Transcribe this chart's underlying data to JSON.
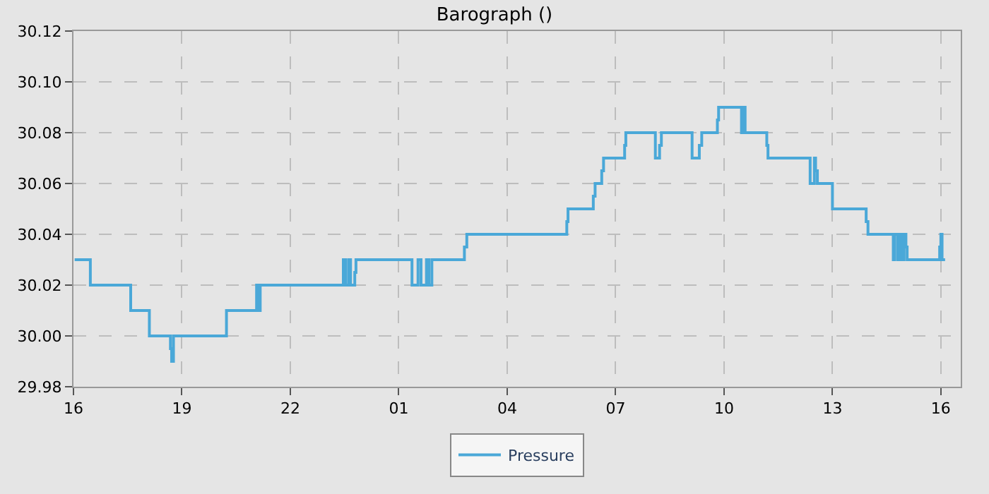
{
  "chart_data": {
    "type": "step",
    "title": "Barograph ()",
    "x": [
      "--01-01T16:02",
      "--01-01T16:28",
      "--01-01T17:35",
      "--01-01T18:06",
      "--01-01T18:41",
      "--01-01T18:43",
      "--01-01T18:46",
      "--01-01T20:14",
      "--01-01T21:04",
      "--01-01T21:06",
      "--01-01T21:10",
      "--01-01T23:28",
      "--01-01T23:32",
      "--01-01T23:37",
      "--01-01T23:40",
      "--01-01T23:47",
      "--01-01T23:49",
      "--01-02T01:22",
      "--01-02T01:32",
      "--01-02T01:37",
      "--01-02T01:46",
      "--01-02T01:50",
      "--01-02T01:55",
      "--01-02T02:49",
      "--01-02T02:53",
      "--01-02T05:39",
      "--01-02T05:41",
      "--01-02T06:23",
      "--01-02T06:26",
      "--01-02T06:37",
      "--01-02T06:40",
      "--01-02T07:15",
      "--01-02T07:17",
      "--01-02T08:06",
      "--01-02T08:13",
      "--01-02T08:16",
      "--01-02T09:07",
      "--01-02T09:19",
      "--01-02T09:23",
      "--01-02T09:49",
      "--01-02T09:51",
      "--01-02T10:29",
      "--01-02T10:31",
      "--01-02T10:35",
      "--01-02T11:11",
      "--01-02T11:13",
      "--01-02T12:23",
      "--01-02T12:30",
      "--01-02T12:32",
      "--01-02T12:35",
      "--01-02T13:00",
      "--01-02T13:56",
      "--01-02T13:59",
      "--01-02T14:41",
      "--01-02T14:43",
      "--01-02T14:48",
      "--01-02T14:52",
      "--01-02T14:55",
      "--01-02T14:59",
      "--01-02T15:02",
      "--01-02T15:04",
      "--01-02T15:58",
      "--01-02T16:00",
      "--01-02T16:02",
      "--01-02T16:07"
    ],
    "series": [
      {
        "name": "Pressure",
        "color": "#4aa8d8",
        "values": [
          30.03,
          30.02,
          30.01,
          30.0,
          29.995,
          29.99,
          30.0,
          30.01,
          30.02,
          30.01,
          30.02,
          30.03,
          30.02,
          30.03,
          30.02,
          30.025,
          30.03,
          30.02,
          30.03,
          30.02,
          30.03,
          30.02,
          30.03,
          30.035,
          30.04,
          30.045,
          30.05,
          30.055,
          30.06,
          30.065,
          30.07,
          30.075,
          30.08,
          30.07,
          30.075,
          30.08,
          30.07,
          30.075,
          30.08,
          30.085,
          30.09,
          30.08,
          30.09,
          30.08,
          30.075,
          30.07,
          30.06,
          30.07,
          30.065,
          30.06,
          30.05,
          30.045,
          30.04,
          30.03,
          30.04,
          30.03,
          30.04,
          30.03,
          30.04,
          30.035,
          30.03,
          30.035,
          30.04,
          30.03,
          30.03
        ]
      }
    ],
    "xlim": [
      "--01-01T16:00",
      "--01-02T16:33"
    ],
    "xticks": [
      {
        "value": "--01-01T16:00",
        "label": "16"
      },
      {
        "value": "--01-01T19:00",
        "label": "19"
      },
      {
        "value": "--01-01T22:00",
        "label": "22"
      },
      {
        "value": "--01-02T01:00",
        "label": "01"
      },
      {
        "value": "--01-02T04:00",
        "label": "04"
      },
      {
        "value": "--01-02T07:00",
        "label": "07"
      },
      {
        "value": "--01-02T10:00",
        "label": "10"
      },
      {
        "value": "--01-02T13:00",
        "label": "13"
      },
      {
        "value": "--01-02T16:00",
        "label": "16"
      }
    ],
    "ylim": [
      29.98,
      30.12
    ],
    "yticks": [
      {
        "value": 29.98,
        "label": "29.98"
      },
      {
        "value": 30.0,
        "label": "30.00"
      },
      {
        "value": 30.02,
        "label": "30.02"
      },
      {
        "value": 30.04,
        "label": "30.04"
      },
      {
        "value": 30.06,
        "label": "30.06"
      },
      {
        "value": 30.08,
        "label": "30.08"
      },
      {
        "value": 30.1,
        "label": "30.10"
      },
      {
        "value": 30.12,
        "label": "30.12"
      }
    ],
    "grid": true,
    "legend": "bottom"
  }
}
